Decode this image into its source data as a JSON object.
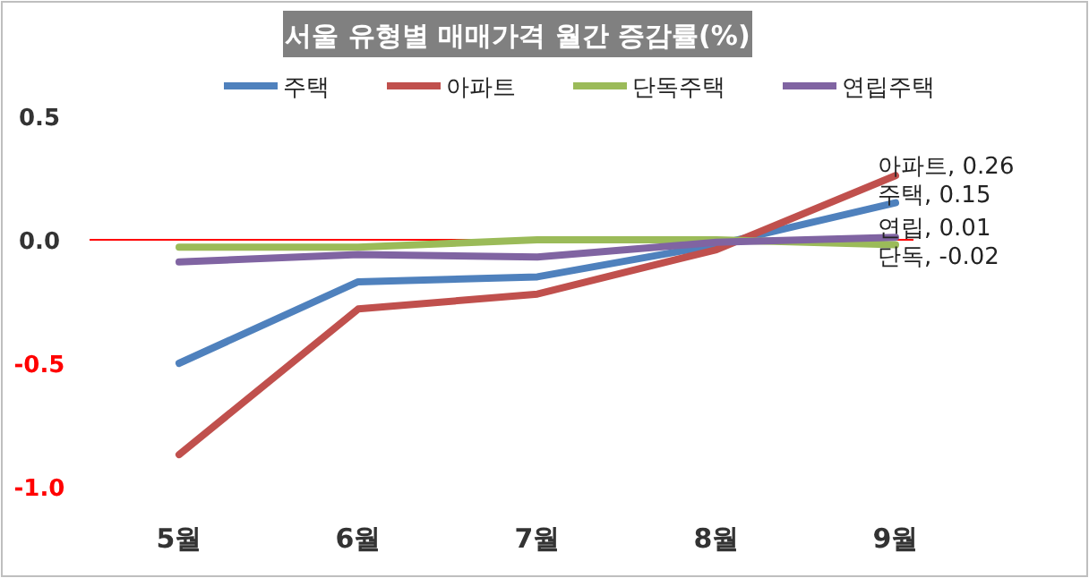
{
  "chart_data": {
    "type": "line",
    "title": "서울 유형별 매매가격 월간 증감률(%)",
    "categories": [
      "5월",
      "6월",
      "7월",
      "8월",
      "9월"
    ],
    "series": [
      {
        "name": "주택",
        "color": "#4f81bd",
        "values": [
          -0.5,
          -0.17,
          -0.15,
          -0.02,
          0.15
        ],
        "value_labels": [
          null,
          null,
          null,
          null,
          "주택, 0.15"
        ]
      },
      {
        "name": "아파트",
        "color": "#c0504d",
        "values": [
          -0.87,
          -0.28,
          -0.22,
          -0.04,
          0.26
        ],
        "value_labels": [
          null,
          null,
          null,
          null,
          "아파트, 0.26"
        ]
      },
      {
        "name": "단독주택",
        "color": "#9bbb59",
        "values": [
          -0.03,
          -0.03,
          0.0,
          0.0,
          -0.02
        ],
        "value_labels": [
          null,
          null,
          null,
          null,
          "단독, -0.02"
        ]
      },
      {
        "name": "연립주택",
        "color": "#8064a2",
        "values": [
          -0.09,
          -0.06,
          -0.07,
          -0.01,
          0.01
        ],
        "value_labels": [
          null,
          null,
          null,
          null,
          "연립, 0.01"
        ]
      }
    ],
    "ylim": [
      -1,
      0.5
    ],
    "yticks": [
      {
        "value": 0.5,
        "label": "0.5"
      },
      {
        "value": 0,
        "label": "0.0"
      },
      {
        "value": -0.5,
        "label": "-0.5"
      },
      {
        "value": -1,
        "label": "-1.0"
      }
    ],
    "ref_lines": [
      {
        "axis": "y",
        "value": 0,
        "label": null,
        "color": "#ff0000"
      }
    ],
    "grid": false,
    "legend": "top",
    "marker": "none",
    "line_style": "solid"
  }
}
